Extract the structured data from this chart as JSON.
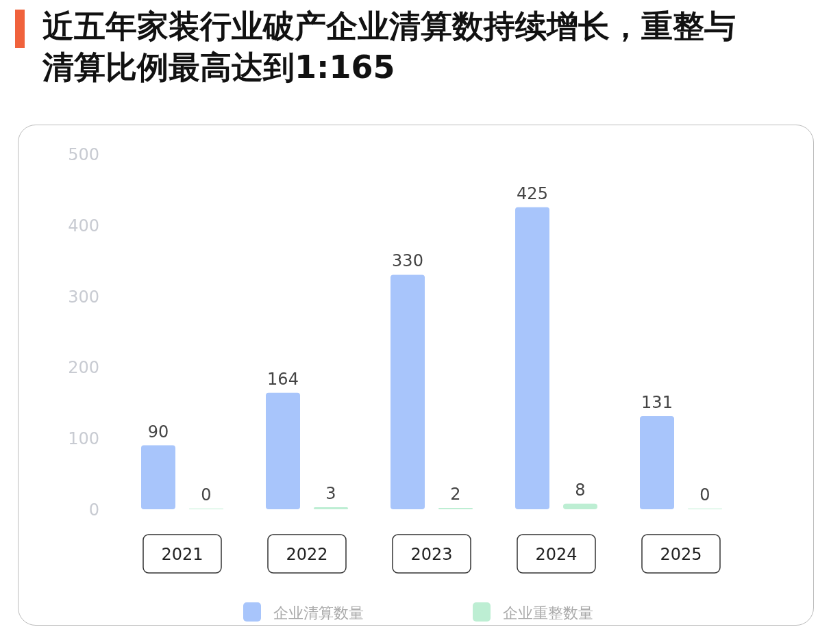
{
  "chart_data": {
    "type": "bar",
    "title": "近五年家装行业破产企业清算数持续增长，重整与清算比例最高达到1:165",
    "categories": [
      "2021",
      "2022",
      "2023",
      "2024",
      "2025"
    ],
    "series": [
      {
        "name": "企业清算数量",
        "color": "#a8c5fb",
        "values": [
          90,
          164,
          330,
          425,
          131
        ]
      },
      {
        "name": "企业重整数量",
        "color": "#bdeed3",
        "values": [
          0,
          3,
          2,
          8,
          0
        ]
      }
    ],
    "ylim": [
      0,
      500
    ],
    "yticks": [
      0,
      100,
      200,
      300,
      400,
      500
    ],
    "data_labels": true,
    "legend": "bottom",
    "grid": false
  }
}
